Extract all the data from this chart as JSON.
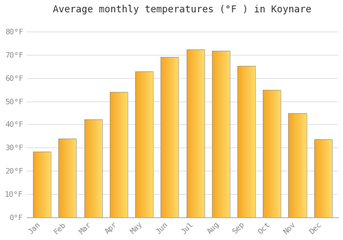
{
  "title": "Average monthly temperatures (°F ) in Koynare",
  "months": [
    "Jan",
    "Feb",
    "Mar",
    "Apr",
    "May",
    "Jun",
    "Jul",
    "Aug",
    "Sep",
    "Oct",
    "Nov",
    "Dec"
  ],
  "values": [
    28.4,
    33.8,
    42.1,
    54.0,
    63.0,
    69.1,
    72.3,
    71.8,
    65.1,
    55.0,
    44.8,
    33.6
  ],
  "bar_color_left": "#F5A623",
  "bar_color_right": "#FFD966",
  "bar_edge_color": "#999999",
  "background_color": "#FFFFFF",
  "plot_bg_color": "#FFFFFF",
  "grid_color": "#E0E0E0",
  "ylim": [
    0,
    85
  ],
  "yticks": [
    0,
    10,
    20,
    30,
    40,
    50,
    60,
    70,
    80
  ],
  "ytick_labels": [
    "0°F",
    "10°F",
    "20°F",
    "30°F",
    "40°F",
    "50°F",
    "60°F",
    "70°F",
    "80°F"
  ],
  "title_fontsize": 10,
  "tick_fontsize": 8,
  "font_family": "monospace"
}
